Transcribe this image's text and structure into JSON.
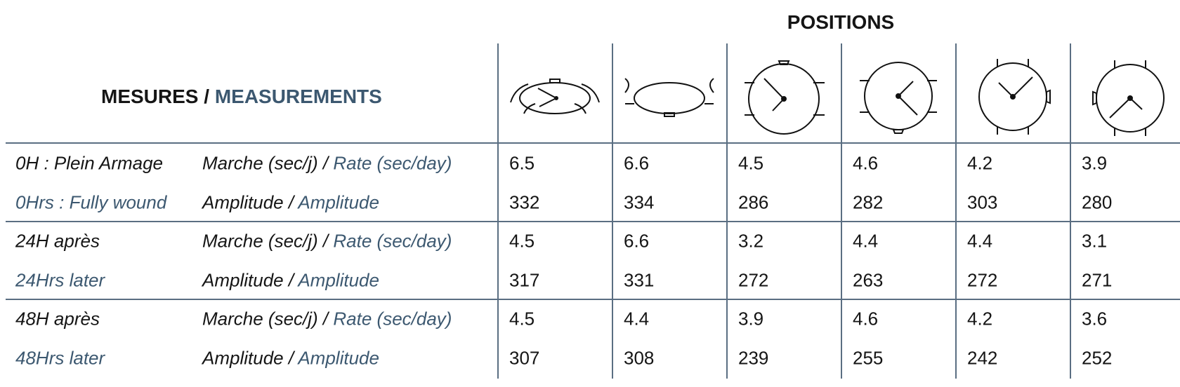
{
  "title": "POSITIONS",
  "header": {
    "fr": "MESURES /",
    "en": "MEASUREMENTS"
  },
  "groups": [
    {
      "label_fr": "0H : Plein Armage",
      "label_en": "0Hrs : Fully wound",
      "rows": [
        {
          "measure_fr": "Marche (sec/j) /",
          "measure_en": "Rate (sec/day)",
          "values": [
            6.5,
            6.6,
            4.5,
            4.6,
            4.2,
            3.9
          ]
        },
        {
          "measure_fr": "Amplitude /",
          "measure_en": "Amplitude",
          "values": [
            332,
            334,
            286,
            282,
            303,
            280
          ]
        }
      ]
    },
    {
      "label_fr": "24H après",
      "label_en": "24Hrs later",
      "rows": [
        {
          "measure_fr": "Marche (sec/j) /",
          "measure_en": "Rate (sec/day)",
          "values": [
            4.5,
            6.6,
            3.2,
            4.4,
            4.4,
            3.1
          ]
        },
        {
          "measure_fr": "Amplitude /",
          "measure_en": "Amplitude",
          "values": [
            317,
            331,
            272,
            263,
            272,
            271
          ]
        }
      ]
    },
    {
      "label_fr": "48H après",
      "label_en": "48Hrs later",
      "rows": [
        {
          "measure_fr": "Marche (sec/j) /",
          "measure_en": "Rate (sec/day)",
          "values": [
            4.5,
            4.4,
            3.9,
            4.6,
            4.2,
            3.6
          ]
        },
        {
          "measure_fr": "Amplitude /",
          "measure_en": "Amplitude",
          "values": [
            307,
            308,
            239,
            255,
            242,
            252
          ]
        }
      ]
    }
  ]
}
